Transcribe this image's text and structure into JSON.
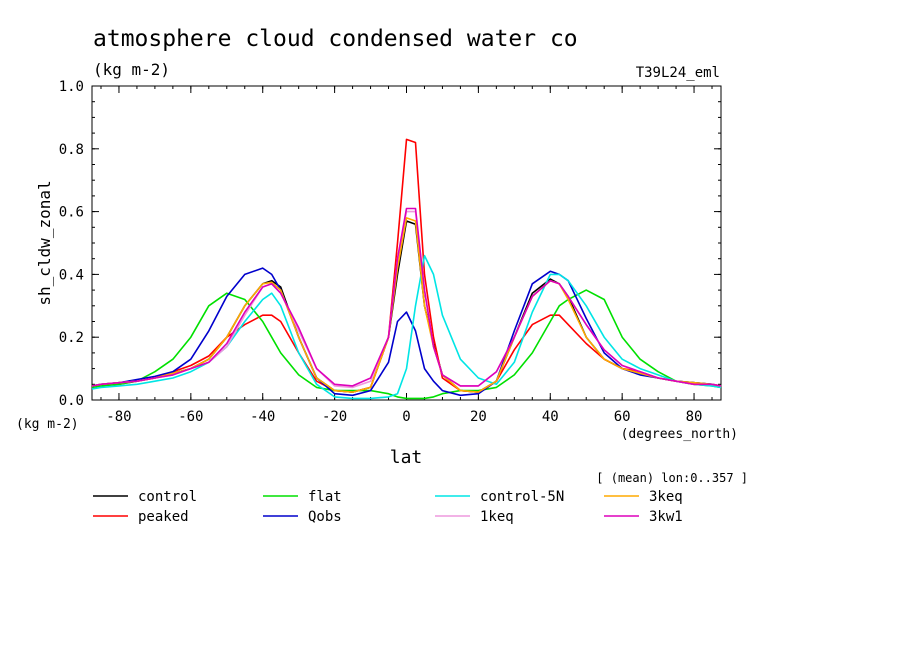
{
  "chart_data": {
    "type": "line",
    "title": "atmosphere cloud condensed water co",
    "units_label": "(kg m-2)",
    "experiment_label": "T39L24_eml",
    "ylabel": "sh_cldw_zonal",
    "yunits": "(kg m-2)",
    "xlabel": "lat",
    "xunits": "(degrees_north)",
    "mean_note": "[ (mean) lon:0..357 ]",
    "xlim": [
      -87.5,
      87.5
    ],
    "ylim": [
      0,
      1.0
    ],
    "xticks": [
      "-80",
      "-60",
      "-40",
      "-20",
      "0",
      "20",
      "40",
      "60",
      "80"
    ],
    "xtick_values": [
      -80,
      -60,
      -40,
      -20,
      0,
      20,
      40,
      60,
      80
    ],
    "yticks": [
      "0.0",
      "0.2",
      "0.4",
      "0.6",
      "0.8",
      "1.0"
    ],
    "ytick_values": [
      0,
      0.2,
      0.4,
      0.6,
      0.8,
      1.0
    ],
    "x": [
      -87.5,
      -85,
      -80,
      -75,
      -70,
      -65,
      -60,
      -55,
      -50,
      -45,
      -40,
      -37.5,
      -35,
      -30,
      -25,
      -20,
      -15,
      -10,
      -5,
      -2.5,
      0,
      2.5,
      5,
      7.5,
      10,
      15,
      20,
      25,
      30,
      35,
      40,
      42.5,
      45,
      50,
      55,
      60,
      65,
      70,
      75,
      80,
      85,
      87.5
    ],
    "series": [
      {
        "name": "control",
        "color": "#000000",
        "values": [
          0.045,
          0.05,
          0.055,
          0.06,
          0.07,
          0.085,
          0.1,
          0.13,
          0.2,
          0.3,
          0.37,
          0.38,
          0.36,
          0.2,
          0.07,
          0.03,
          0.025,
          0.04,
          0.2,
          0.4,
          0.57,
          0.56,
          0.3,
          0.18,
          0.08,
          0.03,
          0.025,
          0.06,
          0.2,
          0.34,
          0.385,
          0.37,
          0.33,
          0.2,
          0.13,
          0.1,
          0.085,
          0.07,
          0.06,
          0.055,
          0.05,
          0.045
        ]
      },
      {
        "name": "peaked",
        "color": "#ff0000",
        "values": [
          0.04,
          0.05,
          0.05,
          0.06,
          0.07,
          0.09,
          0.11,
          0.14,
          0.2,
          0.24,
          0.27,
          0.27,
          0.25,
          0.15,
          0.06,
          0.03,
          0.025,
          0.04,
          0.2,
          0.5,
          0.83,
          0.82,
          0.4,
          0.2,
          0.07,
          0.03,
          0.025,
          0.06,
          0.16,
          0.24,
          0.27,
          0.27,
          0.24,
          0.18,
          0.13,
          0.1,
          0.09,
          0.07,
          0.06,
          0.05,
          0.05,
          0.04
        ]
      },
      {
        "name": "flat",
        "color": "#00e000",
        "values": [
          0.04,
          0.045,
          0.05,
          0.06,
          0.09,
          0.13,
          0.2,
          0.3,
          0.34,
          0.32,
          0.25,
          0.2,
          0.15,
          0.08,
          0.04,
          0.03,
          0.03,
          0.03,
          0.02,
          0.01,
          0.005,
          0.005,
          0.005,
          0.01,
          0.02,
          0.03,
          0.03,
          0.04,
          0.08,
          0.15,
          0.25,
          0.3,
          0.32,
          0.35,
          0.32,
          0.2,
          0.13,
          0.09,
          0.06,
          0.05,
          0.045,
          0.04
        ]
      },
      {
        "name": "Qobs",
        "color": "#0000cc",
        "values": [
          0.045,
          0.05,
          0.055,
          0.065,
          0.075,
          0.09,
          0.13,
          0.22,
          0.33,
          0.4,
          0.42,
          0.4,
          0.35,
          0.2,
          0.07,
          0.02,
          0.015,
          0.03,
          0.12,
          0.25,
          0.28,
          0.22,
          0.1,
          0.06,
          0.03,
          0.015,
          0.02,
          0.06,
          0.22,
          0.37,
          0.41,
          0.4,
          0.38,
          0.26,
          0.15,
          0.1,
          0.08,
          0.07,
          0.06,
          0.055,
          0.05,
          0.045
        ]
      },
      {
        "name": "control-5N",
        "color": "#00e5e5",
        "values": [
          0.035,
          0.04,
          0.045,
          0.05,
          0.06,
          0.07,
          0.09,
          0.12,
          0.17,
          0.25,
          0.32,
          0.34,
          0.3,
          0.15,
          0.05,
          0.01,
          0.005,
          0.005,
          0.01,
          0.02,
          0.1,
          0.3,
          0.46,
          0.4,
          0.27,
          0.13,
          0.07,
          0.05,
          0.12,
          0.28,
          0.4,
          0.4,
          0.38,
          0.3,
          0.2,
          0.13,
          0.1,
          0.08,
          0.06,
          0.05,
          0.045,
          0.04
        ]
      },
      {
        "name": "1keq",
        "color": "#ee99dd",
        "values": [
          0.045,
          0.05,
          0.055,
          0.06,
          0.07,
          0.08,
          0.1,
          0.12,
          0.17,
          0.27,
          0.36,
          0.37,
          0.34,
          0.22,
          0.1,
          0.045,
          0.04,
          0.06,
          0.2,
          0.45,
          0.6,
          0.6,
          0.35,
          0.17,
          0.08,
          0.045,
          0.045,
          0.09,
          0.2,
          0.33,
          0.38,
          0.37,
          0.33,
          0.24,
          0.16,
          0.11,
          0.09,
          0.07,
          0.06,
          0.05,
          0.05,
          0.045
        ]
      },
      {
        "name": "3keq",
        "color": "#ffaa00",
        "values": [
          0.045,
          0.05,
          0.055,
          0.06,
          0.07,
          0.085,
          0.1,
          0.13,
          0.2,
          0.3,
          0.37,
          0.375,
          0.35,
          0.2,
          0.07,
          0.03,
          0.025,
          0.04,
          0.2,
          0.42,
          0.58,
          0.57,
          0.3,
          0.17,
          0.08,
          0.03,
          0.025,
          0.06,
          0.2,
          0.33,
          0.38,
          0.37,
          0.32,
          0.2,
          0.13,
          0.1,
          0.085,
          0.07,
          0.06,
          0.055,
          0.05,
          0.045
        ]
      },
      {
        "name": "3kw1",
        "color": "#dd00bb",
        "values": [
          0.045,
          0.05,
          0.055,
          0.06,
          0.07,
          0.08,
          0.1,
          0.12,
          0.18,
          0.28,
          0.36,
          0.37,
          0.34,
          0.23,
          0.1,
          0.05,
          0.045,
          0.07,
          0.2,
          0.45,
          0.61,
          0.61,
          0.35,
          0.17,
          0.08,
          0.045,
          0.045,
          0.09,
          0.2,
          0.33,
          0.38,
          0.37,
          0.33,
          0.24,
          0.16,
          0.11,
          0.09,
          0.07,
          0.06,
          0.05,
          0.05,
          0.045
        ]
      }
    ]
  }
}
